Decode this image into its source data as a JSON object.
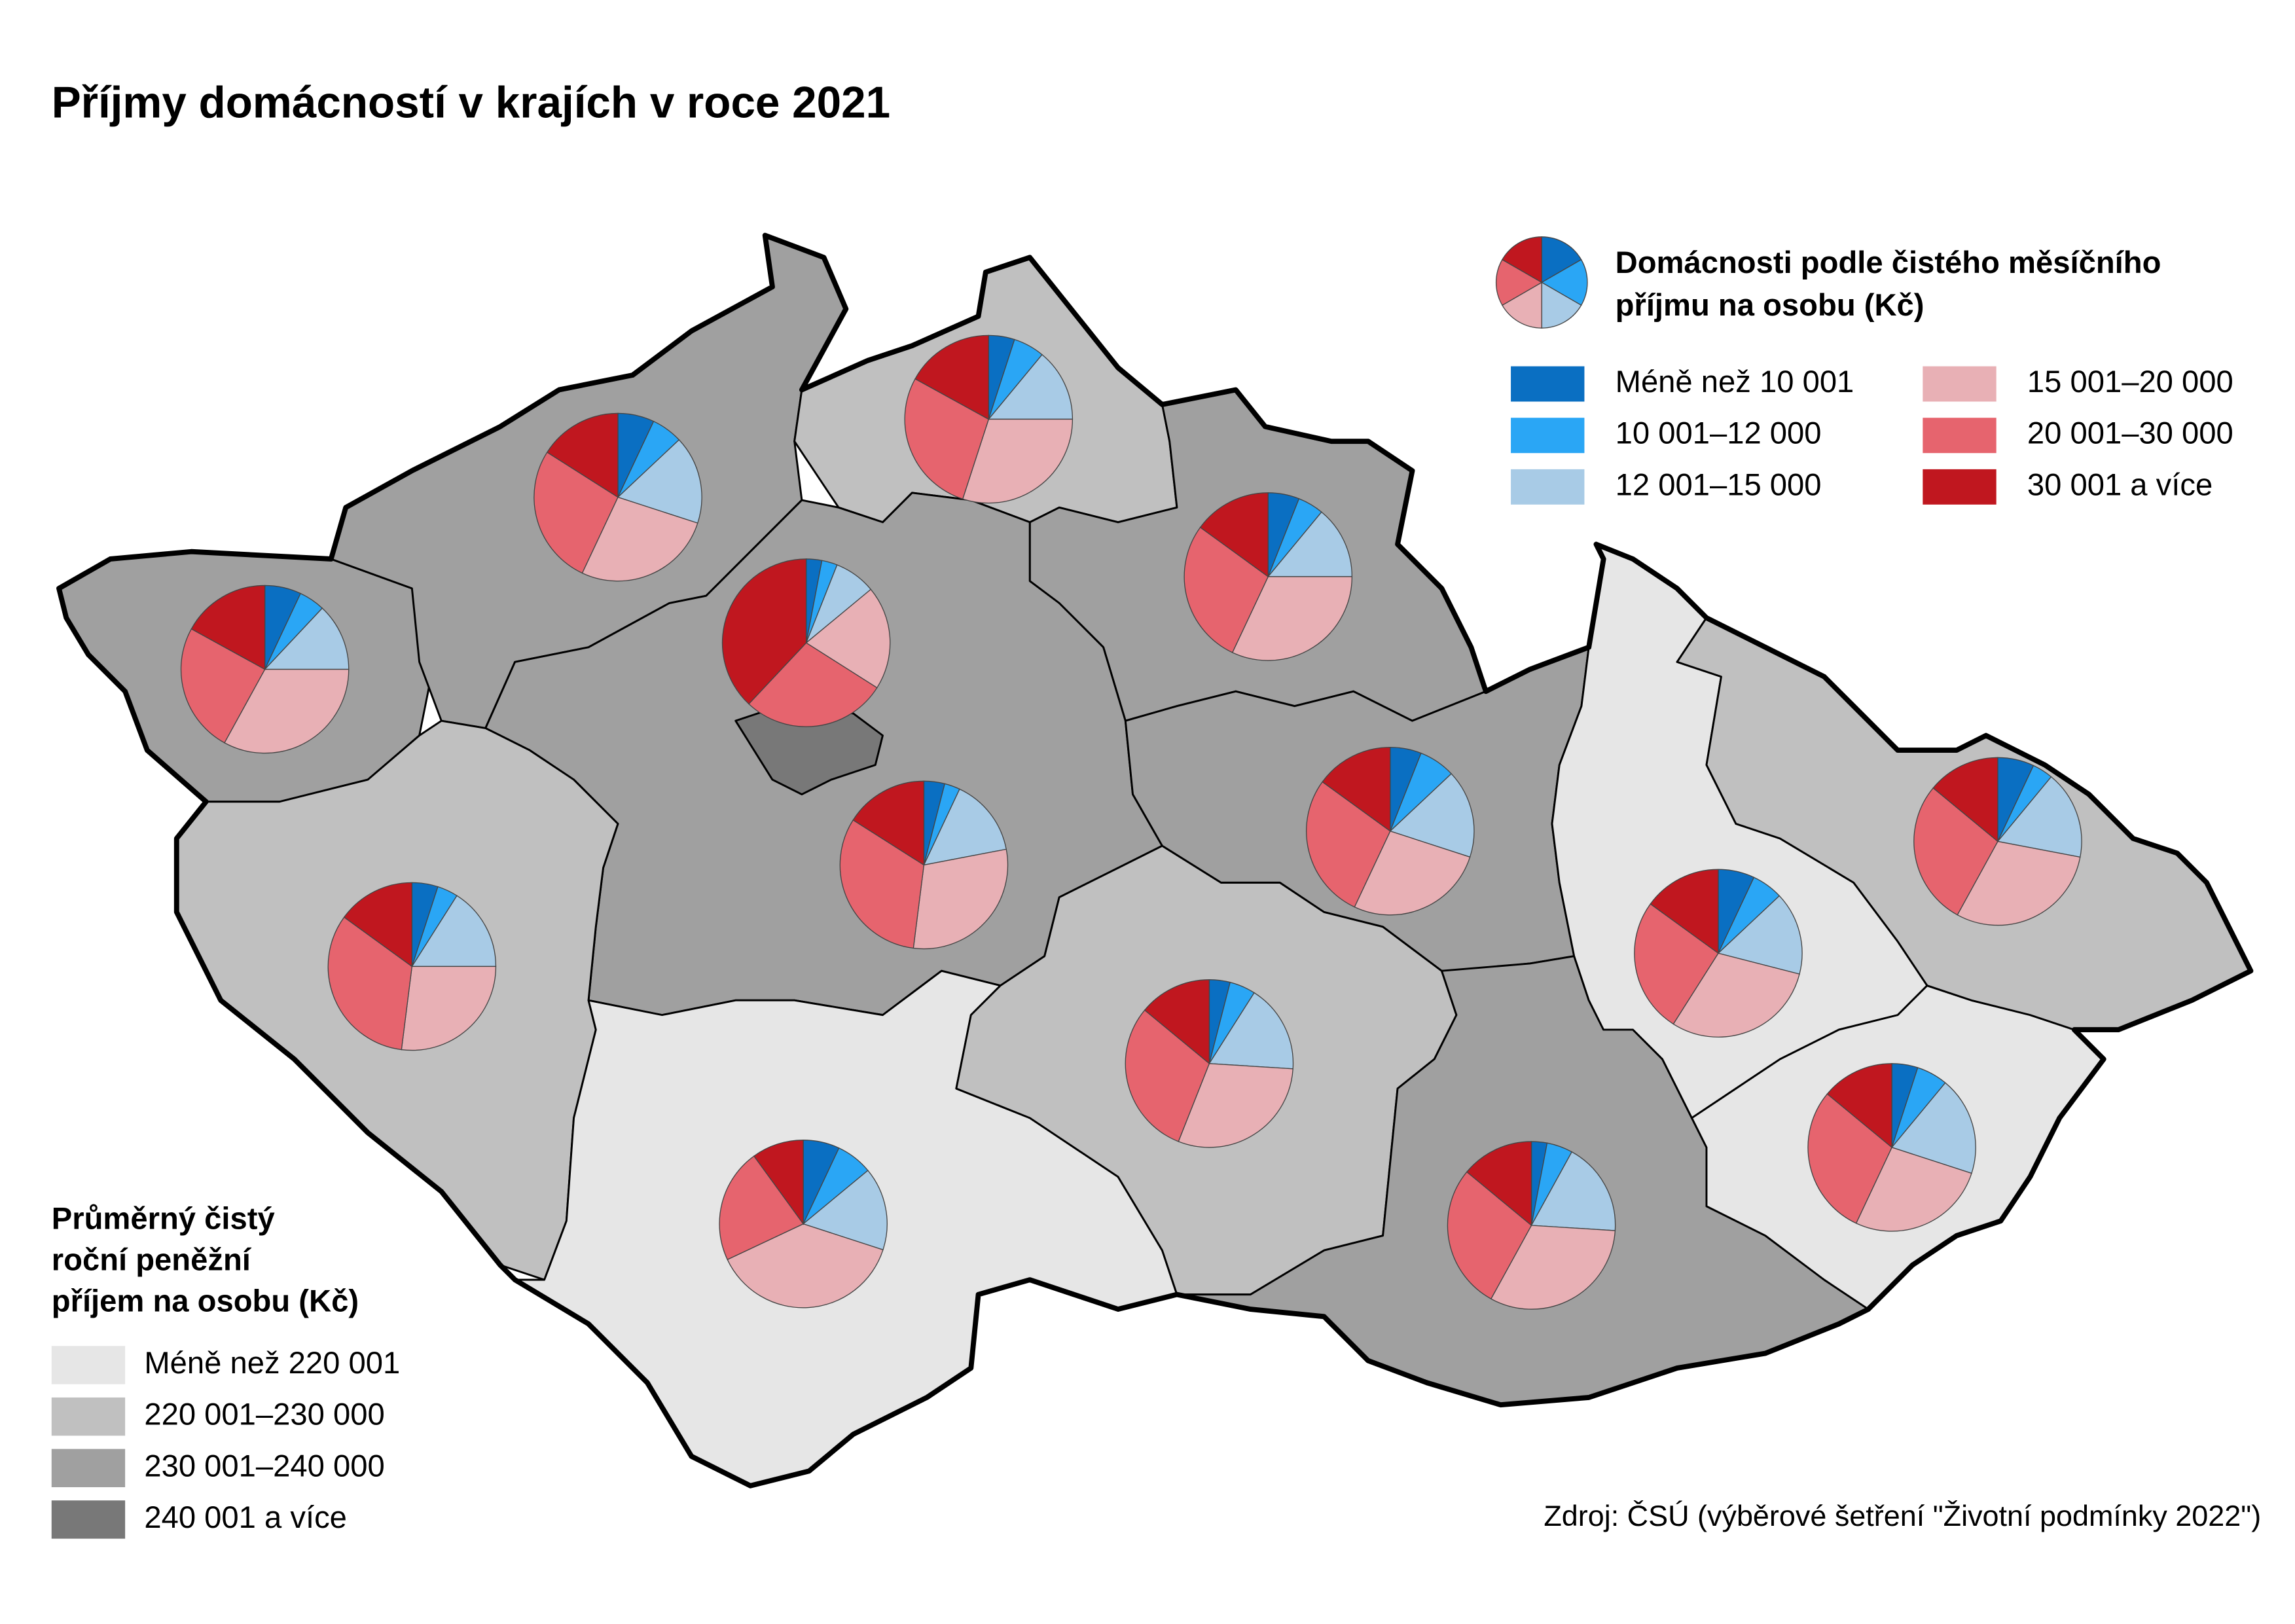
{
  "map": {
    "title": "Příjmy domácností v krajích v roce 2021",
    "pie_legend": {
      "title_lines": [
        "Domácnosti podle čistého měsíčního",
        "příjmu na osobu (Kč)"
      ],
      "items": [
        {
          "label": "Méně než 10 001",
          "color": "#0a6fc2"
        },
        {
          "label": "10 001–12 000",
          "color": "#2aa6f5"
        },
        {
          "label": "12 001–15 000",
          "color": "#a8cbe6"
        },
        {
          "label": "15 001–20 000",
          "color": "#e8b0b5"
        },
        {
          "label": "20 001–30 000",
          "color": "#e6646e"
        },
        {
          "label": "30 001 a více",
          "color": "#c0171f"
        }
      ]
    },
    "income_legend": {
      "title_lines": [
        "Průměrný čistý",
        "roční peněžní",
        "příjem na osobu (Kč)"
      ],
      "items": [
        {
          "label": "Méně než 220 001",
          "color": "#e6e6e6"
        },
        {
          "label": "220 001–230 000",
          "color": "#c0c0c0"
        },
        {
          "label": "230 001–240 000",
          "color": "#a0a0a0"
        },
        {
          "label": "240 001 a více",
          "color": "#787878"
        }
      ]
    },
    "pies": [
      {
        "values": [
          7,
          5,
          13,
          33,
          25,
          17
        ]
      },
      {
        "values": [
          7,
          6,
          17,
          27,
          27,
          16
        ]
      },
      {
        "values": [
          5,
          6,
          14,
          30,
          28,
          17
        ]
      },
      {
        "values": [
          6,
          5,
          14,
          32,
          28,
          15
        ]
      },
      {
        "values": [
          3,
          3,
          8,
          20,
          28,
          38
        ]
      },
      {
        "values": [
          5,
          4,
          16,
          27,
          33,
          15
        ]
      },
      {
        "values": [
          4,
          3,
          15,
          30,
          32,
          16
        ]
      },
      {
        "values": [
          6,
          7,
          17,
          27,
          28,
          15
        ]
      },
      {
        "values": [
          7,
          6,
          16,
          30,
          26,
          15
        ]
      },
      {
        "values": [
          7,
          4,
          17,
          30,
          28,
          14
        ]
      },
      {
        "values": [
          4,
          5,
          17,
          30,
          30,
          14
        ]
      },
      {
        "values": [
          7,
          7,
          16,
          38,
          22,
          10
        ]
      },
      {
        "values": [
          3,
          5,
          18,
          32,
          28,
          14
        ]
      },
      {
        "values": [
          5,
          6,
          19,
          27,
          29,
          14
        ]
      }
    ],
    "source": "Zdroj: ČSÚ (výběrové šetření \"Životní podmínky 2022\")"
  }
}
